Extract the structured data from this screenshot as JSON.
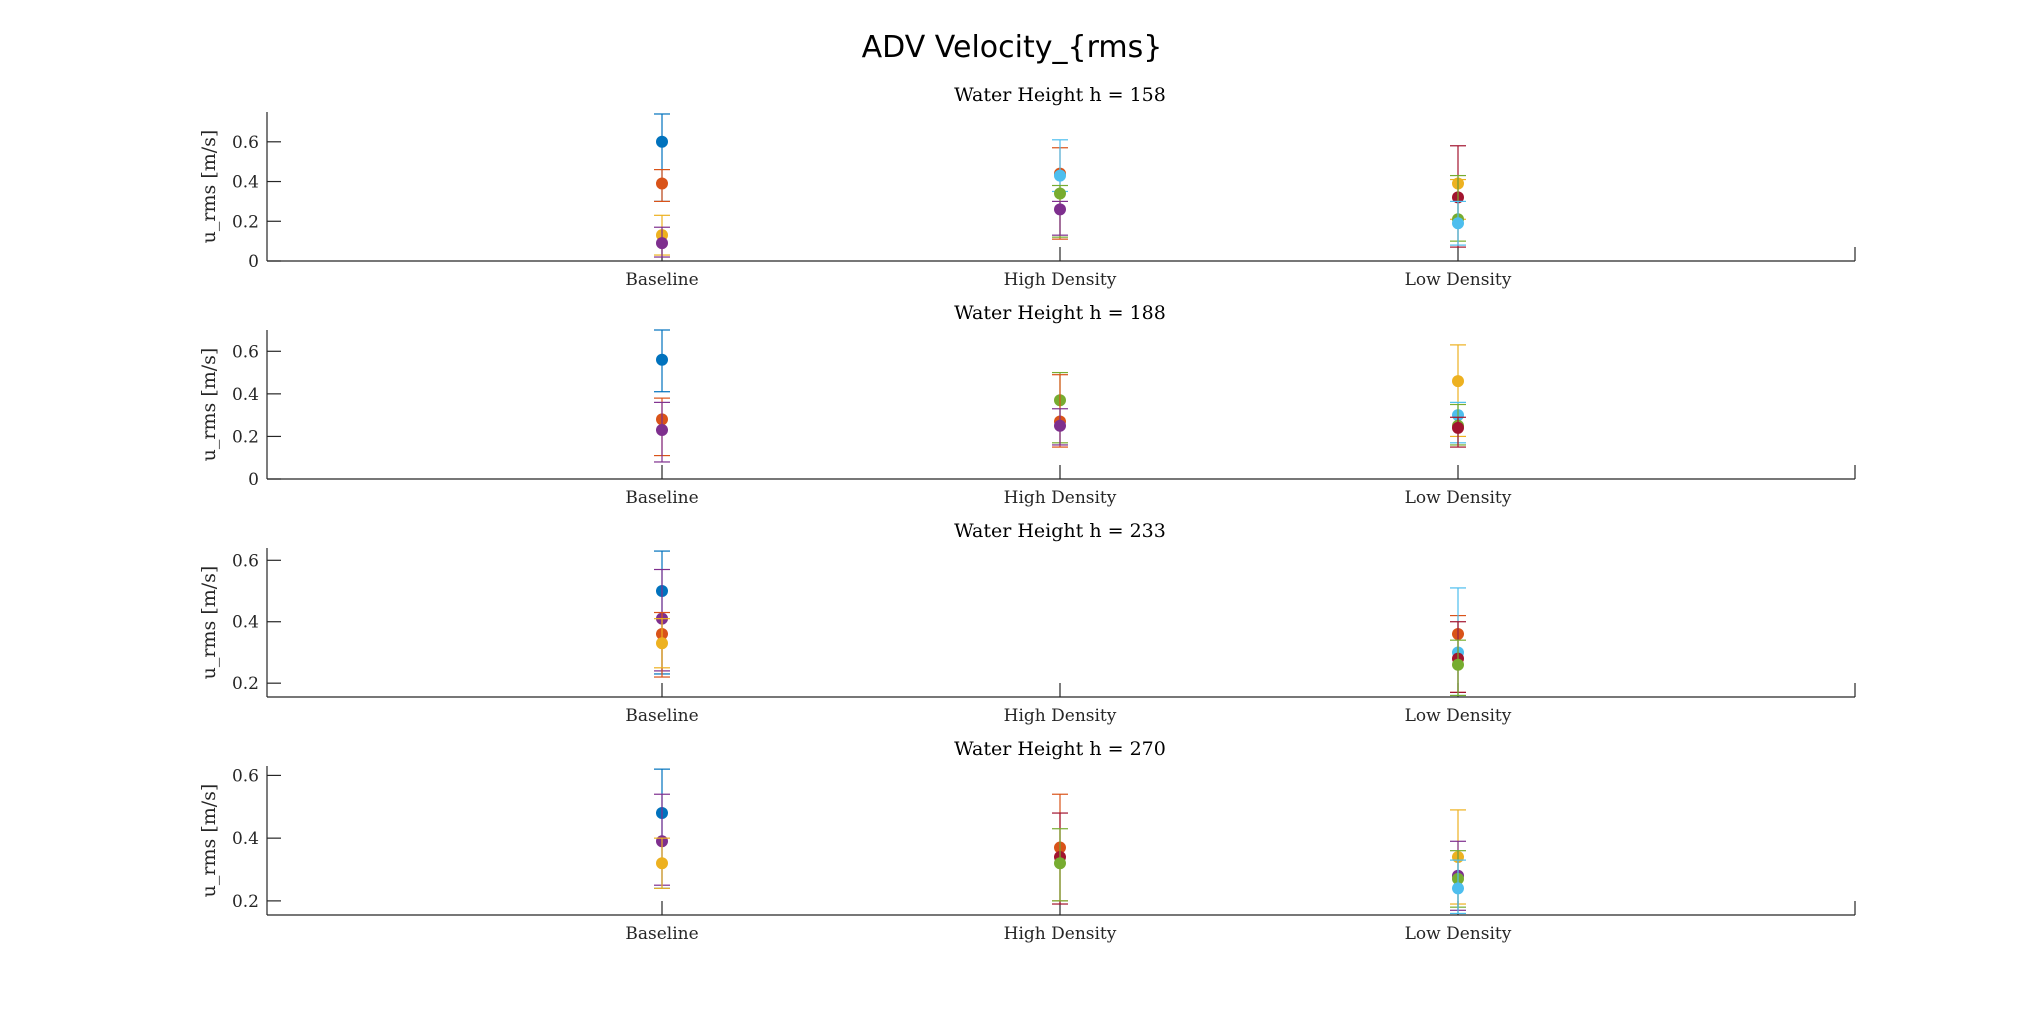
{
  "figure_title": "ADV Velocity_{rms}",
  "colors": [
    "#0072BD",
    "#D95319",
    "#EDB120",
    "#7E2F8E",
    "#77AC30",
    "#4DBEEE",
    "#A2142F"
  ],
  "chart_data": [
    {
      "type": "scatter",
      "title": "Water Height h = 158",
      "ylabel": "u_rms [m/s]",
      "categories": [
        "Baseline",
        "High Density",
        "Low Density"
      ],
      "ylim": [
        0,
        0.75
      ],
      "yticks": [
        "0",
        "0.2",
        "0.4",
        "0.6"
      ],
      "points": [
        {
          "cat": 0,
          "y": 0.6,
          "lo": 0.3,
          "hi": 0.74,
          "c": 0
        },
        {
          "cat": 0,
          "y": 0.39,
          "lo": 0.3,
          "hi": 0.46,
          "c": 1
        },
        {
          "cat": 0,
          "y": 0.13,
          "lo": 0.03,
          "hi": 0.23,
          "c": 2
        },
        {
          "cat": 0,
          "y": 0.09,
          "lo": 0.02,
          "hi": 0.17,
          "c": 3
        },
        {
          "cat": 1,
          "y": 0.44,
          "lo": 0.11,
          "hi": 0.57,
          "c": 1
        },
        {
          "cat": 1,
          "y": 0.43,
          "lo": 0.35,
          "hi": 0.61,
          "c": 5
        },
        {
          "cat": 1,
          "y": 0.34,
          "lo": 0.12,
          "hi": 0.38,
          "c": 4
        },
        {
          "cat": 1,
          "y": 0.26,
          "lo": 0.13,
          "hi": 0.3,
          "c": 3
        },
        {
          "cat": 2,
          "y": 0.39,
          "lo": 0.21,
          "hi": 0.41,
          "c": 2
        },
        {
          "cat": 2,
          "y": 0.32,
          "lo": 0.07,
          "hi": 0.58,
          "c": 6
        },
        {
          "cat": 2,
          "y": 0.21,
          "lo": 0.1,
          "hi": 0.43,
          "c": 4
        },
        {
          "cat": 2,
          "y": 0.19,
          "lo": 0.08,
          "hi": 0.3,
          "c": 5
        }
      ]
    },
    {
      "type": "scatter",
      "title": "Water Height h = 188",
      "ylabel": "u_rms [m/s]",
      "categories": [
        "Baseline",
        "High Density",
        "Low Density"
      ],
      "ylim": [
        0,
        0.7
      ],
      "yticks": [
        "0",
        "0.2",
        "0.4",
        "0.6"
      ],
      "points": [
        {
          "cat": 0,
          "y": 0.56,
          "lo": 0.41,
          "hi": 0.7,
          "c": 0
        },
        {
          "cat": 0,
          "y": 0.28,
          "lo": 0.11,
          "hi": 0.38,
          "c": 1
        },
        {
          "cat": 0,
          "y": 0.23,
          "lo": 0.08,
          "hi": 0.36,
          "c": 3
        },
        {
          "cat": 1,
          "y": 0.37,
          "lo": 0.17,
          "hi": 0.5,
          "c": 4
        },
        {
          "cat": 1,
          "y": 0.27,
          "lo": 0.15,
          "hi": 0.49,
          "c": 1
        },
        {
          "cat": 1,
          "y": 0.25,
          "lo": 0.16,
          "hi": 0.33,
          "c": 3
        },
        {
          "cat": 2,
          "y": 0.46,
          "lo": 0.2,
          "hi": 0.63,
          "c": 2
        },
        {
          "cat": 2,
          "y": 0.3,
          "lo": 0.17,
          "hi": 0.36,
          "c": 5
        },
        {
          "cat": 2,
          "y": 0.25,
          "lo": 0.16,
          "hi": 0.35,
          "c": 4
        },
        {
          "cat": 2,
          "y": 0.24,
          "lo": 0.15,
          "hi": 0.29,
          "c": 6
        }
      ]
    },
    {
      "type": "scatter",
      "title": "Water Height h = 233",
      "ylabel": "u_rms [m/s]",
      "categories": [
        "Baseline",
        "High Density",
        "Low Density"
      ],
      "ylim": [
        0.155,
        0.64
      ],
      "yticks": [
        "0.2",
        "0.4",
        "0.6"
      ],
      "points": [
        {
          "cat": 0,
          "y": 0.5,
          "lo": 0.23,
          "hi": 0.63,
          "c": 0
        },
        {
          "cat": 0,
          "y": 0.41,
          "lo": 0.24,
          "hi": 0.57,
          "c": 3
        },
        {
          "cat": 0,
          "y": 0.36,
          "lo": 0.22,
          "hi": 0.43,
          "c": 1
        },
        {
          "cat": 0,
          "y": 0.33,
          "lo": 0.25,
          "hi": 0.41,
          "c": 2
        },
        {
          "cat": 2,
          "y": 0.36,
          "lo": 0.17,
          "hi": 0.42,
          "c": 1
        },
        {
          "cat": 2,
          "y": 0.3,
          "lo": 0.16,
          "hi": 0.51,
          "c": 5
        },
        {
          "cat": 2,
          "y": 0.28,
          "lo": 0.17,
          "hi": 0.4,
          "c": 6
        },
        {
          "cat": 2,
          "y": 0.26,
          "lo": 0.16,
          "hi": 0.34,
          "c": 4
        }
      ]
    },
    {
      "type": "scatter",
      "title": "Water Height h = 270",
      "ylabel": "u_rms [m/s]",
      "categories": [
        "Baseline",
        "High Density",
        "Low Density"
      ],
      "ylim": [
        0.155,
        0.63
      ],
      "yticks": [
        "0.2",
        "0.4",
        "0.6"
      ],
      "points": [
        {
          "cat": 0,
          "y": 0.48,
          "lo": 0.24,
          "hi": 0.62,
          "c": 0
        },
        {
          "cat": 0,
          "y": 0.39,
          "lo": 0.25,
          "hi": 0.54,
          "c": 3
        },
        {
          "cat": 0,
          "y": 0.32,
          "lo": 0.24,
          "hi": 0.4,
          "c": 2
        },
        {
          "cat": 1,
          "y": 0.37,
          "lo": 0.2,
          "hi": 0.54,
          "c": 1
        },
        {
          "cat": 1,
          "y": 0.34,
          "lo": 0.19,
          "hi": 0.48,
          "c": 6
        },
        {
          "cat": 1,
          "y": 0.32,
          "lo": 0.2,
          "hi": 0.43,
          "c": 4
        },
        {
          "cat": 2,
          "y": 0.34,
          "lo": 0.19,
          "hi": 0.49,
          "c": 2
        },
        {
          "cat": 2,
          "y": 0.28,
          "lo": 0.17,
          "hi": 0.39,
          "c": 3
        },
        {
          "cat": 2,
          "y": 0.27,
          "lo": 0.18,
          "hi": 0.36,
          "c": 4
        },
        {
          "cat": 2,
          "y": 0.24,
          "lo": 0.16,
          "hi": 0.33,
          "c": 5
        }
      ]
    }
  ]
}
